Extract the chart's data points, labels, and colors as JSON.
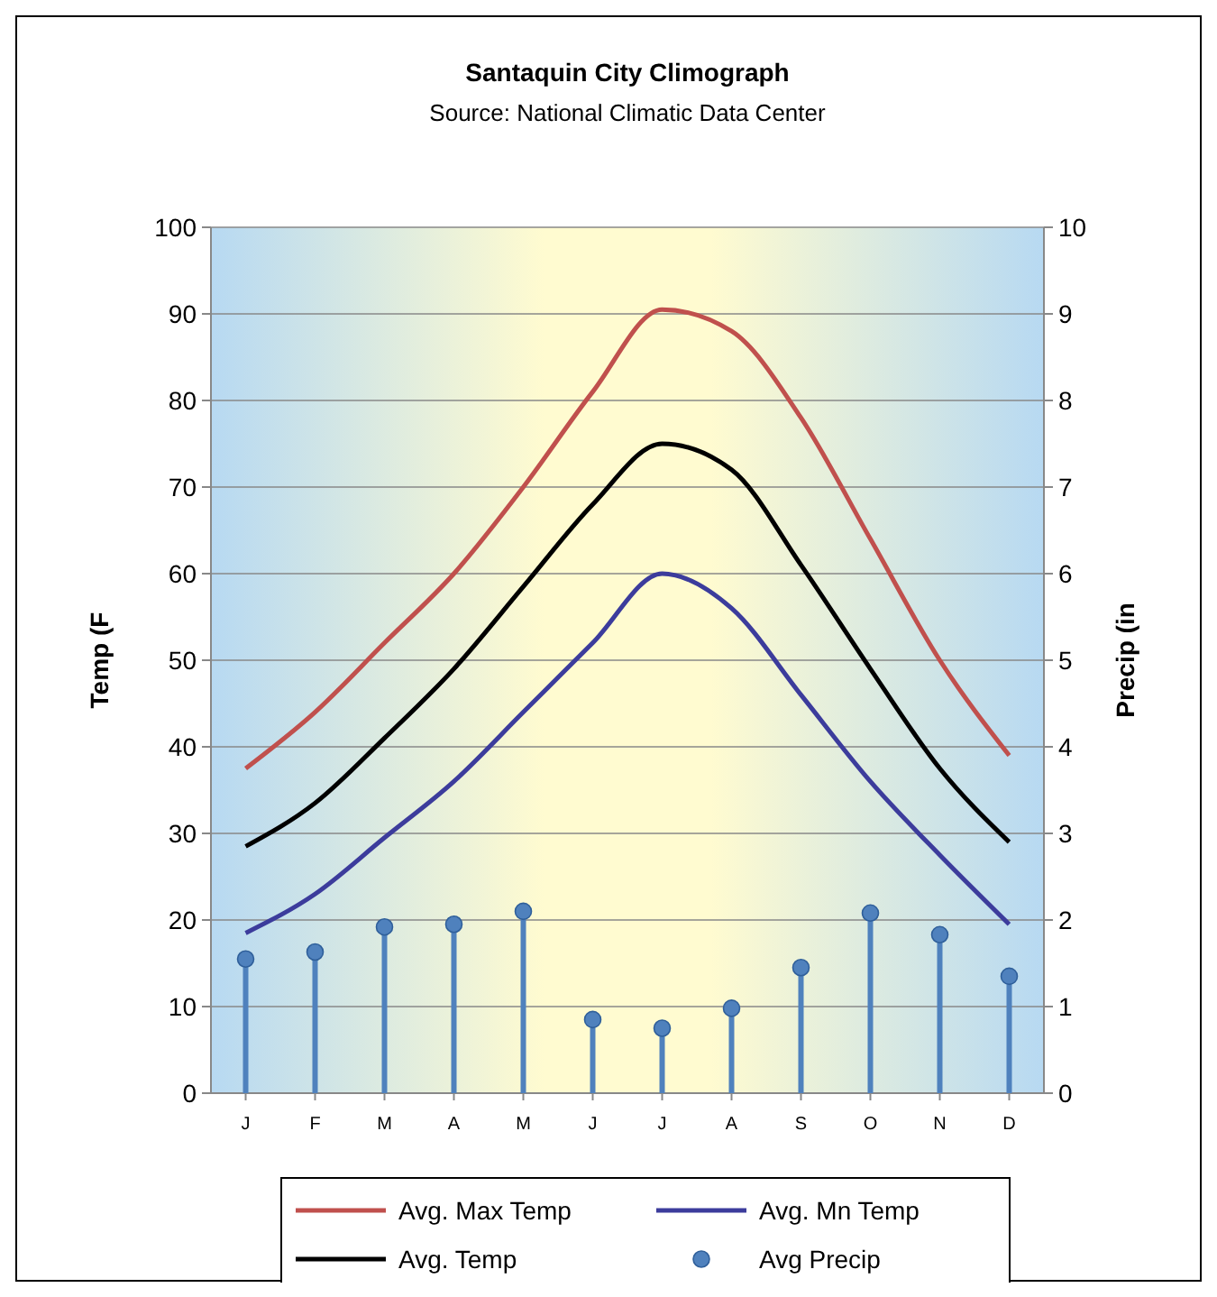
{
  "chart_data": {
    "type": "line",
    "title": "Santaquin City Climograph",
    "subtitle": "Source: National Climatic Data Center",
    "ylabel": "Temp (F",
    "y2label": "Precip (in",
    "categories": [
      "J",
      "F",
      "M",
      "A",
      "M",
      "J",
      "J",
      "A",
      "S",
      "O",
      "N",
      "D"
    ],
    "series": [
      {
        "name": "Avg. Max Temp",
        "color": "#c0504d",
        "values": [
          37.5,
          44,
          52,
          60,
          70,
          81,
          90.5,
          88,
          78,
          64,
          50,
          39
        ]
      },
      {
        "name": "Avg. Mn Temp",
        "color": "#3c3c9c",
        "values": [
          18.5,
          23,
          29.5,
          36,
          44,
          52,
          60,
          56,
          46,
          36,
          27.5,
          19.5
        ]
      },
      {
        "name": "Avg. Temp",
        "color": "#000000",
        "values": [
          28.5,
          33.5,
          41,
          49,
          58.5,
          68,
          75,
          72,
          61,
          49,
          37.5,
          29
        ]
      },
      {
        "name": "Avg Precip",
        "color": "#4f81bd",
        "type": "lollipop",
        "axis": "y2",
        "marker": "circle",
        "values": [
          1.55,
          1.63,
          1.92,
          1.95,
          2.1,
          0.85,
          0.75,
          0.98,
          1.45,
          2.08,
          1.83,
          1.35
        ]
      }
    ],
    "ylim": [
      0,
      100
    ],
    "yticks": [
      0,
      10,
      20,
      30,
      40,
      50,
      60,
      70,
      80,
      90,
      100
    ],
    "y2lim": [
      0,
      10
    ],
    "y2ticks": [
      0,
      1,
      2,
      3,
      4,
      5,
      6,
      7,
      8,
      9,
      10
    ],
    "grid": "y",
    "legend": "bottom"
  }
}
